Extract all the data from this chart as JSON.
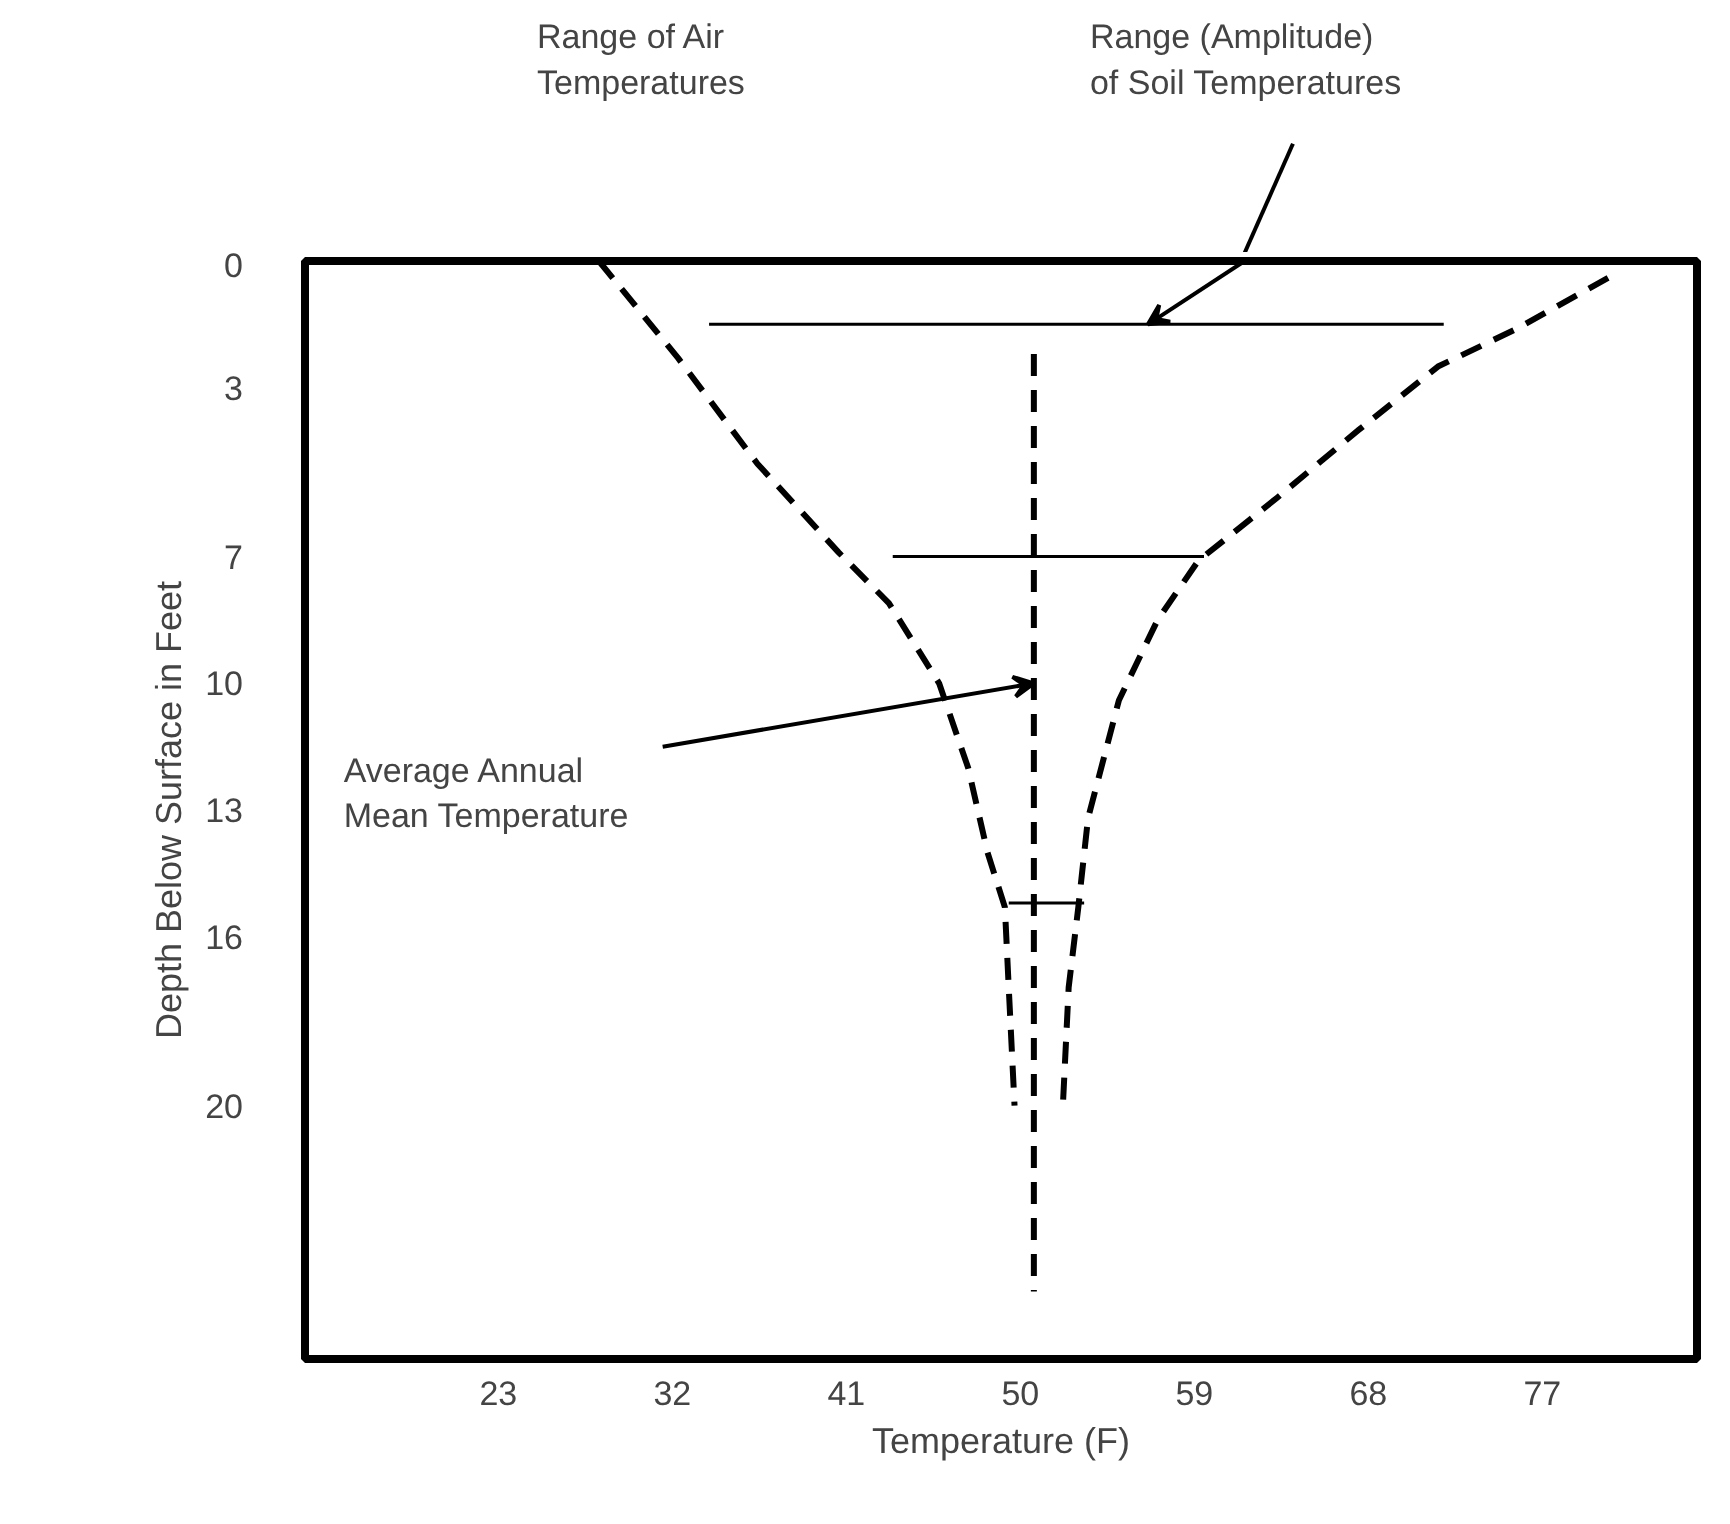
{
  "chart_data": {
    "type": "line",
    "xlabel": "Temperature (F)",
    "ylabel": "Depth Below Surface in Feet",
    "xlim": [
      13,
      85
    ],
    "ylim": [
      26,
      0
    ],
    "xticks": [
      23,
      32,
      41,
      50,
      59,
      68,
      77
    ],
    "yticks": [
      0,
      3,
      7,
      10,
      13,
      16,
      20
    ],
    "grid": false,
    "line_style": "dashed",
    "series": [
      {
        "color": "#000000",
        "x": [
          28.2,
          32.3,
          36.4,
          40.6,
          43.2,
          45.8,
          47.3,
          48.3,
          49.2,
          49.4,
          49.7
        ],
        "values": [
          0,
          2.3,
          4.8,
          6.9,
          8.1,
          10,
          12,
          14,
          15.3,
          17.2,
          20
        ]
      },
      {
        "color": "#000000",
        "x": [
          80.4,
          75.7,
          71.6,
          67.5,
          63.3,
          59.2,
          57.1,
          55.1,
          53.5,
          53.0,
          52.5,
          52.2
        ],
        "values": [
          0.4,
          1.6,
          2.5,
          4.0,
          5.6,
          7.1,
          8.5,
          10.4,
          13.2,
          15.3,
          17.2,
          20
        ]
      },
      {
        "color": "#000000",
        "x": [
          50.7,
          50.7
        ],
        "values": [
          2.2,
          24.4
        ]
      },
      {
        "color": "#000000",
        "line_style": "solid",
        "x": [
          33.9,
          71.9
        ],
        "values": [
          1.5,
          1.5
        ]
      },
      {
        "color": "#000000",
        "line_style": "solid",
        "x": [
          43.4,
          59.5
        ],
        "values": [
          7,
          7
        ]
      },
      {
        "color": "#000000",
        "line_style": "solid",
        "x": [
          49.4,
          53.3
        ],
        "values": [
          15.2,
          15.2
        ]
      }
    ],
    "annotations": [
      "Range of Air\nTemperatures",
      "Range (Amplitude)\nof Soil Temperatures",
      {
        "text": "Average Annual\nMean Temperature",
        "x": 50.7,
        "y": 10
      }
    ]
  }
}
